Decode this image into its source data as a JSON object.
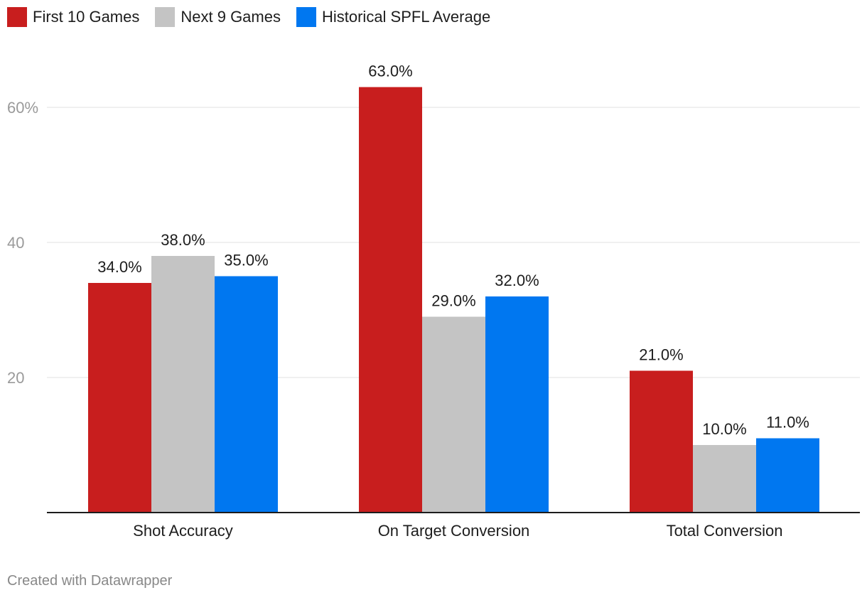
{
  "chart_data": {
    "type": "bar",
    "categories": [
      "Shot Accuracy",
      "On Target Conversion",
      "Total Conversion"
    ],
    "series": [
      {
        "name": "First 10 Games",
        "color": "#c81e1e",
        "values": [
          34.0,
          63.0,
          21.0
        ],
        "labels": [
          "34.0%",
          "63.0%",
          "21.0%"
        ]
      },
      {
        "name": "Next 9 Games",
        "color": "#c4c4c4",
        "values": [
          38.0,
          29.0,
          10.0
        ],
        "labels": [
          "38.0%",
          "29.0%",
          "10.0%"
        ]
      },
      {
        "name": "Historical SPFL Average",
        "color": "#0077f0",
        "values": [
          35.0,
          32.0,
          11.0
        ],
        "labels": [
          "35.0%",
          "32.0%",
          "11.0%"
        ]
      }
    ],
    "yticks": [
      {
        "value": 20,
        "label": "20"
      },
      {
        "value": 40,
        "label": "40"
      },
      {
        "value": 60,
        "label": "60%"
      }
    ],
    "ylim": [
      0,
      70
    ],
    "grid": true,
    "legend_position": "top-left"
  },
  "footer": "Created with Datawrapper"
}
